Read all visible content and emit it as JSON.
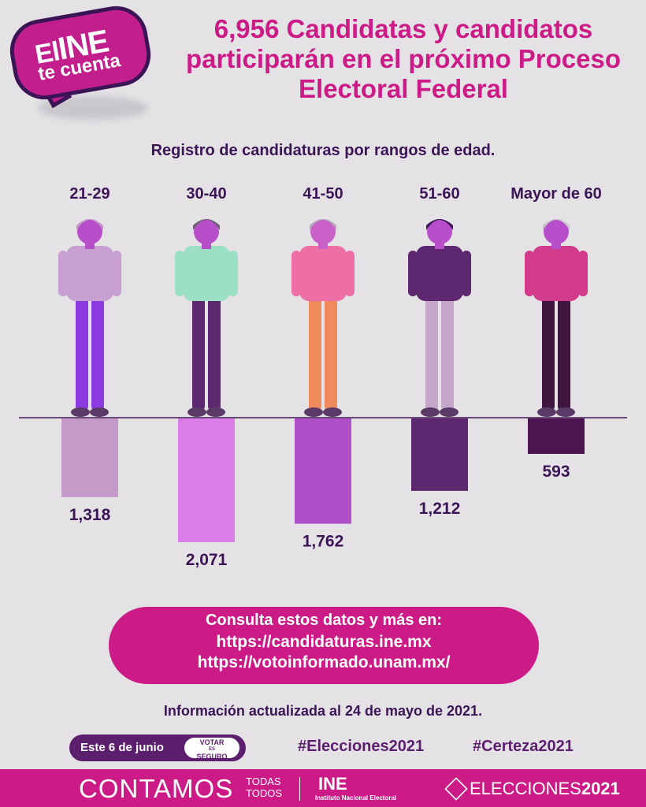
{
  "badge": {
    "line1_pre": "El",
    "line1_ine": "INE",
    "line2": "te cuenta"
  },
  "title": "6,956 Candidatas y candidatos participarán en el próximo Proceso Electoral Federal",
  "colors": {
    "title": "#cc1a86",
    "text": "#3b1456",
    "bars": [
      "#c49ac8",
      "#dc7eea",
      "#b050c8",
      "#5e2870",
      "#4a1550"
    ]
  },
  "chart_data": {
    "type": "bar",
    "title": "Registro de candidaturas por rangos de edad.",
    "categories": [
      "21-29",
      "30-40",
      "41-50",
      "51-60",
      "Mayor de 60"
    ],
    "values": [
      1318,
      2071,
      1762,
      1212,
      593
    ],
    "value_labels": [
      "1,318",
      "2,071",
      "1,762",
      "1,212",
      "593"
    ],
    "xlabel": "",
    "ylabel": "",
    "orientation": "downward",
    "ylim": [
      0,
      2071
    ],
    "grid": false,
    "legend": "none"
  },
  "figures": [
    "person-21-29",
    "person-30-40",
    "person-41-50",
    "person-51-60",
    "person-mayor-60"
  ],
  "cta": {
    "heading": "Consulta estos datos y más en:",
    "link1": "https://candidaturas.ine.mx",
    "link2": "https://votoinformado.unam.mx/"
  },
  "updated": "Información actualizada al 24 de mayo de 2021.",
  "date_pill": {
    "text": "Este 6 de junio",
    "votar_top": "VOTAR",
    "votar_mid": "ES",
    "votar_bot": "SEGURO"
  },
  "hashtags": [
    "#Elecciones2021",
    "#Certeza2021"
  ],
  "footer": {
    "contamos": "CONTAMOS",
    "todas": "TODAS",
    "todos": "TODOS",
    "ine": "INE",
    "ine_sub": "Instituto Nacional Electoral",
    "elecciones_pre": "ELECCIONES",
    "elecciones_year": "2021"
  }
}
